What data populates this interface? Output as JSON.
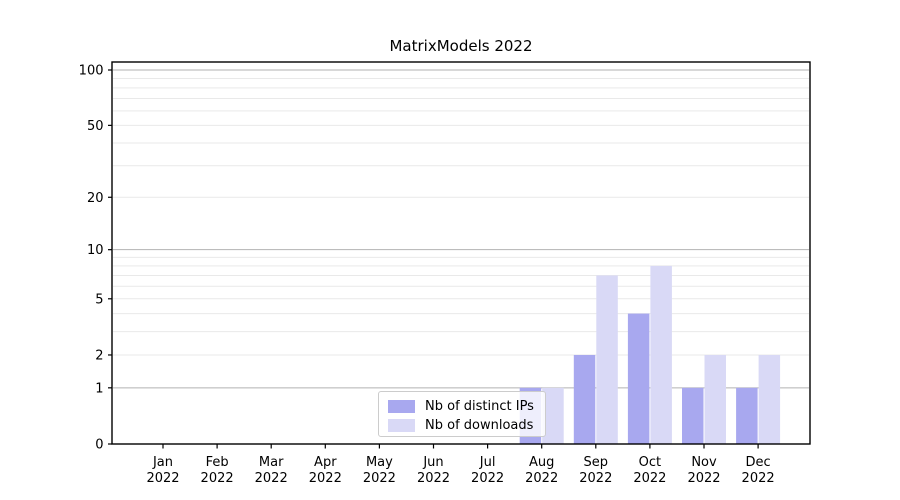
{
  "title": "MatrixModels 2022",
  "legend": {
    "items": [
      {
        "label": "Nb of distinct IPs",
        "color": "#a8a8ef"
      },
      {
        "label": "Nb of downloads",
        "color": "#d9d9f6"
      }
    ]
  },
  "x_axis": {
    "months": [
      "Jan",
      "Feb",
      "Mar",
      "Apr",
      "May",
      "Jun",
      "Jul",
      "Aug",
      "Sep",
      "Oct",
      "Nov",
      "Dec"
    ],
    "year": "2022"
  },
  "y_axis": {
    "tick_labels": [
      "0",
      "1",
      "2",
      "5",
      "10",
      "20",
      "50",
      "100"
    ]
  },
  "colors": {
    "bar_distinct_ips": "#a8a8ef",
    "bar_downloads": "#d9d9f6",
    "major_grid": "#b2b2b2",
    "minor_grid": "#e9e9e9",
    "axis": "#000000",
    "text": "#000000",
    "legend_border": "#cccccc"
  },
  "chart_data": {
    "type": "bar",
    "title": "MatrixModels 2022",
    "categories": [
      "Jan 2022",
      "Feb 2022",
      "Mar 2022",
      "Apr 2022",
      "May 2022",
      "Jun 2022",
      "Jul 2022",
      "Aug 2022",
      "Sep 2022",
      "Oct 2022",
      "Nov 2022",
      "Dec 2022"
    ],
    "series": [
      {
        "name": "Nb of distinct IPs",
        "color": "#a8a8ef",
        "values": [
          0,
          0,
          0,
          0,
          0,
          0,
          0,
          1,
          2,
          4,
          1,
          1
        ]
      },
      {
        "name": "Nb of downloads",
        "color": "#d9d9f6",
        "values": [
          0,
          0,
          0,
          0,
          0,
          0,
          0,
          1,
          7,
          8,
          2,
          2
        ]
      }
    ],
    "yscale": "log1p",
    "yticks": [
      0,
      1,
      2,
      5,
      10,
      20,
      50,
      100
    ],
    "major_gridlines": [
      1,
      10,
      100
    ],
    "minor_gridlines": [
      2,
      3,
      4,
      5,
      6,
      7,
      8,
      9,
      20,
      30,
      40,
      50,
      60,
      70,
      80,
      90
    ],
    "ylim": [
      0,
      110
    ],
    "xlabel": "",
    "ylabel": "",
    "grid": "on",
    "legend_position": "lower center"
  }
}
